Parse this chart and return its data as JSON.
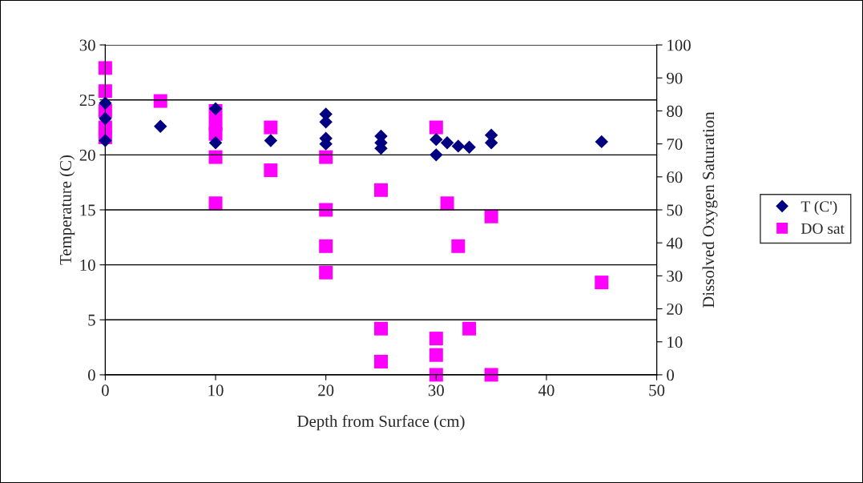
{
  "chart_data": {
    "type": "scatter",
    "xlabel": "Depth from Surface (cm)",
    "ylabel": "Temperature (C)",
    "y2label": "Dissolved Oxygen Saturation",
    "xlim": [
      0,
      50
    ],
    "xticks": [
      0,
      10,
      20,
      30,
      40,
      50
    ],
    "ylim": [
      0,
      30
    ],
    "yticks": [
      0,
      5,
      10,
      15,
      20,
      25,
      30
    ],
    "y2lim": [
      0,
      100
    ],
    "y2ticks": [
      0,
      10,
      20,
      30,
      40,
      50,
      60,
      70,
      80,
      90,
      100
    ],
    "grid": "y",
    "legend": "right",
    "series": [
      {
        "name": "T (C')",
        "color": "#000080",
        "marker": "diamond",
        "x": [
          0,
          0,
          0,
          5,
          10,
          10,
          15,
          20,
          20,
          20,
          20,
          25,
          25,
          25,
          30,
          30,
          31,
          32,
          33,
          35,
          35,
          45
        ],
        "values": [
          21.3,
          23.3,
          24.7,
          22.6,
          24.2,
          21.1,
          21.3,
          23.7,
          23.0,
          21.5,
          21.0,
          21.7,
          21.1,
          20.6,
          21.4,
          20.0,
          21.1,
          20.8,
          20.7,
          21.8,
          21.1,
          21.2
        ]
      },
      {
        "name": "DO sat",
        "color": "#ff00ff",
        "marker": "square",
        "axis": "y2",
        "x": [
          0,
          0,
          0,
          0,
          0,
          5,
          10,
          10,
          10,
          10,
          10,
          15,
          15,
          20,
          20,
          20,
          20,
          25,
          25,
          25,
          30,
          30,
          30,
          30,
          31,
          32,
          33,
          35,
          35,
          45
        ],
        "values": [
          93,
          86,
          80,
          75,
          72,
          83,
          80,
          76,
          73,
          66,
          52,
          75,
          62,
          66,
          50,
          39,
          31,
          56,
          14,
          4,
          75,
          11,
          6,
          0,
          52,
          39,
          14,
          48,
          0,
          28
        ]
      }
    ]
  }
}
